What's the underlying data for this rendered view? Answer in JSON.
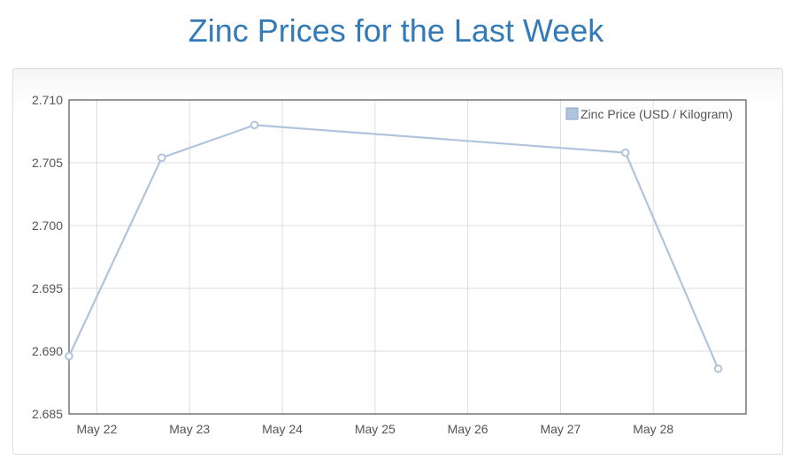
{
  "page": {
    "title": "Zinc Prices for the Last Week"
  },
  "chart_data": {
    "type": "line",
    "title": "Zinc Prices for the Last Week",
    "xlabel": "",
    "ylabel": "",
    "x_ticks": [
      "May 22",
      "May 23",
      "May 24",
      "May 25",
      "May 26",
      "May 27",
      "May 28"
    ],
    "y_ticks": [
      "2.685",
      "2.690",
      "2.695",
      "2.700",
      "2.705",
      "2.710"
    ],
    "xlim": [
      "May 21.7",
      "May 29.0"
    ],
    "ylim": [
      2.685,
      2.71
    ],
    "grid": true,
    "legend_position": "top-right",
    "series": [
      {
        "name": "Zinc Price (USD / Kilogram)",
        "color": "#b0c4de",
        "x": [
          "May 21.7",
          "May 22.7",
          "May 23.7",
          "May 27.7",
          "May 28.7"
        ],
        "values": [
          2.6896,
          2.7054,
          2.708,
          2.7058,
          2.6886
        ]
      }
    ]
  }
}
